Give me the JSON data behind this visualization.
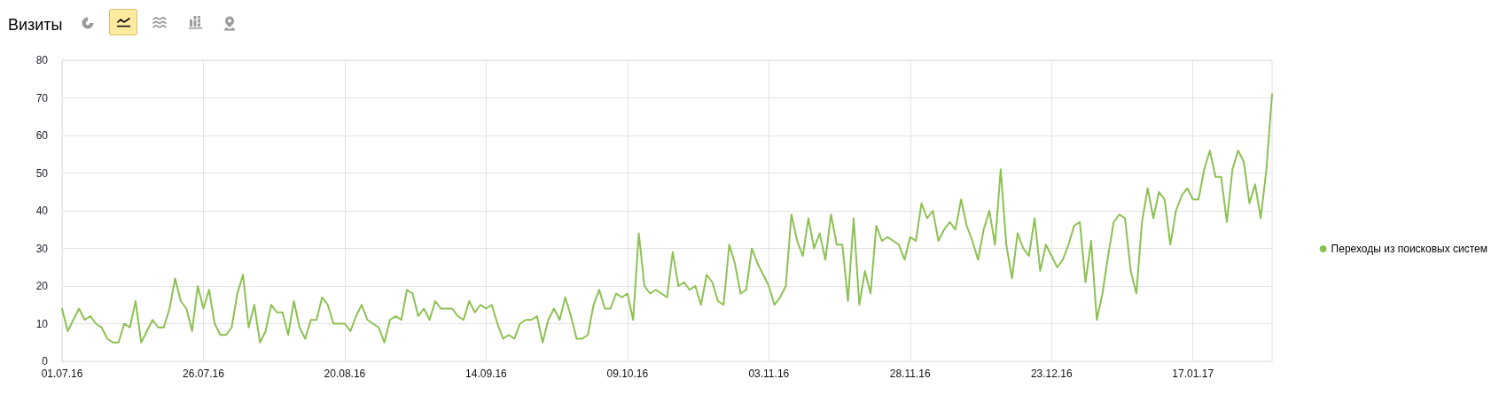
{
  "chart_data": {
    "type": "line",
    "title": "Визиты",
    "x": [
      "2016-07-01",
      "2016-07-02",
      "2016-07-03",
      "2016-07-04",
      "2016-07-05",
      "2016-07-06",
      "2016-07-07",
      "2016-07-08",
      "2016-07-09",
      "2016-07-10",
      "2016-07-11",
      "2016-07-12",
      "2016-07-13",
      "2016-07-14",
      "2016-07-15",
      "2016-07-16",
      "2016-07-17",
      "2016-07-18",
      "2016-07-19",
      "2016-07-20",
      "2016-07-21",
      "2016-07-22",
      "2016-07-23",
      "2016-07-24",
      "2016-07-25",
      "2016-07-26",
      "2016-07-27",
      "2016-07-28",
      "2016-07-29",
      "2016-07-30",
      "2016-07-31",
      "2016-08-01",
      "2016-08-02",
      "2016-08-03",
      "2016-08-04",
      "2016-08-05",
      "2016-08-06",
      "2016-08-07",
      "2016-08-08",
      "2016-08-09",
      "2016-08-10",
      "2016-08-11",
      "2016-08-12",
      "2016-08-13",
      "2016-08-14",
      "2016-08-15",
      "2016-08-16",
      "2016-08-17",
      "2016-08-18",
      "2016-08-19",
      "2016-08-20",
      "2016-08-21",
      "2016-08-22",
      "2016-08-23",
      "2016-08-24",
      "2016-08-25",
      "2016-08-26",
      "2016-08-27",
      "2016-08-28",
      "2016-08-29",
      "2016-08-30",
      "2016-08-31",
      "2016-09-01",
      "2016-09-02",
      "2016-09-03",
      "2016-09-04",
      "2016-09-05",
      "2016-09-06",
      "2016-09-07",
      "2016-09-08",
      "2016-09-09",
      "2016-09-10",
      "2016-09-11",
      "2016-09-12",
      "2016-09-13",
      "2016-09-14",
      "2016-09-15",
      "2016-09-16",
      "2016-09-17",
      "2016-09-18",
      "2016-09-19",
      "2016-09-20",
      "2016-09-21",
      "2016-09-22",
      "2016-09-23",
      "2016-09-24",
      "2016-09-25",
      "2016-09-26",
      "2016-09-27",
      "2016-09-28",
      "2016-09-29",
      "2016-09-30",
      "2016-10-01",
      "2016-10-02",
      "2016-10-03",
      "2016-10-04",
      "2016-10-05",
      "2016-10-06",
      "2016-10-07",
      "2016-10-08",
      "2016-10-09",
      "2016-10-10",
      "2016-10-11",
      "2016-10-12",
      "2016-10-13",
      "2016-10-14",
      "2016-10-15",
      "2016-10-16",
      "2016-10-17",
      "2016-10-18",
      "2016-10-19",
      "2016-10-20",
      "2016-10-21",
      "2016-10-22",
      "2016-10-23",
      "2016-10-24",
      "2016-10-25",
      "2016-10-26",
      "2016-10-27",
      "2016-10-28",
      "2016-10-29",
      "2016-10-30",
      "2016-10-31",
      "2016-11-01",
      "2016-11-02",
      "2016-11-03",
      "2016-11-04",
      "2016-11-05",
      "2016-11-06",
      "2016-11-07",
      "2016-11-08",
      "2016-11-09",
      "2016-11-10",
      "2016-11-11",
      "2016-11-12",
      "2016-11-13",
      "2016-11-14",
      "2016-11-15",
      "2016-11-16",
      "2016-11-17",
      "2016-11-18",
      "2016-11-19",
      "2016-11-20",
      "2016-11-21",
      "2016-11-22",
      "2016-11-23",
      "2016-11-24",
      "2016-11-25",
      "2016-11-26",
      "2016-11-27",
      "2016-11-28",
      "2016-11-29",
      "2016-11-30",
      "2016-12-01",
      "2016-12-02",
      "2016-12-03",
      "2016-12-04",
      "2016-12-05",
      "2016-12-06",
      "2016-12-07",
      "2016-12-08",
      "2016-12-09",
      "2016-12-10",
      "2016-12-11",
      "2016-12-12",
      "2016-12-13",
      "2016-12-14",
      "2016-12-15",
      "2016-12-16",
      "2016-12-17",
      "2016-12-18",
      "2016-12-19",
      "2016-12-20",
      "2016-12-21",
      "2016-12-22",
      "2016-12-23",
      "2016-12-24",
      "2016-12-25",
      "2016-12-26",
      "2016-12-27",
      "2016-12-28",
      "2016-12-29",
      "2016-12-30",
      "2016-12-31",
      "2017-01-01",
      "2017-01-02",
      "2017-01-03",
      "2017-01-04",
      "2017-01-05",
      "2017-01-06",
      "2017-01-07",
      "2017-01-08",
      "2017-01-09",
      "2017-01-10",
      "2017-01-11",
      "2017-01-12",
      "2017-01-13",
      "2017-01-14",
      "2017-01-15",
      "2017-01-16",
      "2017-01-17",
      "2017-01-18",
      "2017-01-19",
      "2017-01-20",
      "2017-01-21",
      "2017-01-22",
      "2017-01-23",
      "2017-01-24",
      "2017-01-25",
      "2017-01-26",
      "2017-01-27",
      "2017-01-28",
      "2017-01-29",
      "2017-01-30",
      "2017-01-31"
    ],
    "series": [
      {
        "name": "Переходы из поисковых систем",
        "color": "#8cc152",
        "values": [
          14,
          8,
          11,
          14,
          11,
          12,
          10,
          9,
          6,
          5,
          5,
          10,
          9,
          16,
          5,
          8,
          11,
          9,
          9,
          14,
          22,
          16,
          14,
          8,
          20,
          14,
          19,
          10,
          7,
          7,
          9,
          18,
          23,
          9,
          15,
          5,
          8,
          15,
          13,
          13,
          7,
          16,
          9,
          6,
          11,
          11,
          17,
          15,
          10,
          10,
          10,
          8,
          12,
          15,
          11,
          10,
          9,
          5,
          11,
          12,
          11,
          19,
          18,
          12,
          14,
          11,
          16,
          14,
          14,
          14,
          12,
          11,
          16,
          13,
          15,
          14,
          15,
          10,
          6,
          7,
          6,
          10,
          11,
          11,
          12,
          5,
          11,
          14,
          11,
          17,
          12,
          6,
          6,
          7,
          15,
          19,
          14,
          14,
          18,
          17,
          18,
          11,
          34,
          20,
          18,
          19,
          18,
          17,
          29,
          20,
          21,
          19,
          20,
          15,
          23,
          21,
          16,
          15,
          31,
          26,
          18,
          19,
          30,
          26,
          23,
          20,
          15,
          17,
          20,
          39,
          32,
          28,
          38,
          30,
          34,
          27,
          39,
          31,
          31,
          16,
          38,
          15,
          24,
          18,
          36,
          32,
          33,
          32,
          31,
          27,
          33,
          32,
          42,
          38,
          40,
          32,
          35,
          37,
          35,
          43,
          36,
          32,
          27,
          35,
          40,
          31,
          51,
          31,
          22,
          34,
          30,
          28,
          38,
          24,
          31,
          28,
          25,
          27,
          31,
          36,
          37,
          21,
          32,
          11,
          18,
          28,
          37,
          39,
          38,
          24,
          18,
          37,
          46,
          38,
          45,
          43,
          31,
          40,
          44,
          46,
          43,
          43,
          51,
          56,
          49,
          49,
          37,
          51,
          56,
          53,
          42,
          47,
          38,
          51,
          71
        ]
      }
    ],
    "xlim": [
      "2016-07-01",
      "2017-01-31"
    ],
    "xticks": [
      {
        "value": "2016-07-01",
        "label": "01.07.16"
      },
      {
        "value": "2016-07-26",
        "label": "26.07.16"
      },
      {
        "value": "2016-08-20",
        "label": "20.08.16"
      },
      {
        "value": "2016-09-14",
        "label": "14.09.16"
      },
      {
        "value": "2016-10-09",
        "label": "09.10.16"
      },
      {
        "value": "2016-11-03",
        "label": "03.11.16"
      },
      {
        "value": "2016-11-28",
        "label": "28.11.16"
      },
      {
        "value": "2016-12-23",
        "label": "23.12.16"
      },
      {
        "value": "2017-01-17",
        "label": "17.01.17"
      }
    ],
    "ylim": [
      0,
      80
    ],
    "yticks": [
      0,
      10,
      20,
      30,
      40,
      50,
      60,
      70,
      80
    ],
    "grid": true,
    "legend": "right",
    "marker": "none",
    "line_style": "solid"
  }
}
